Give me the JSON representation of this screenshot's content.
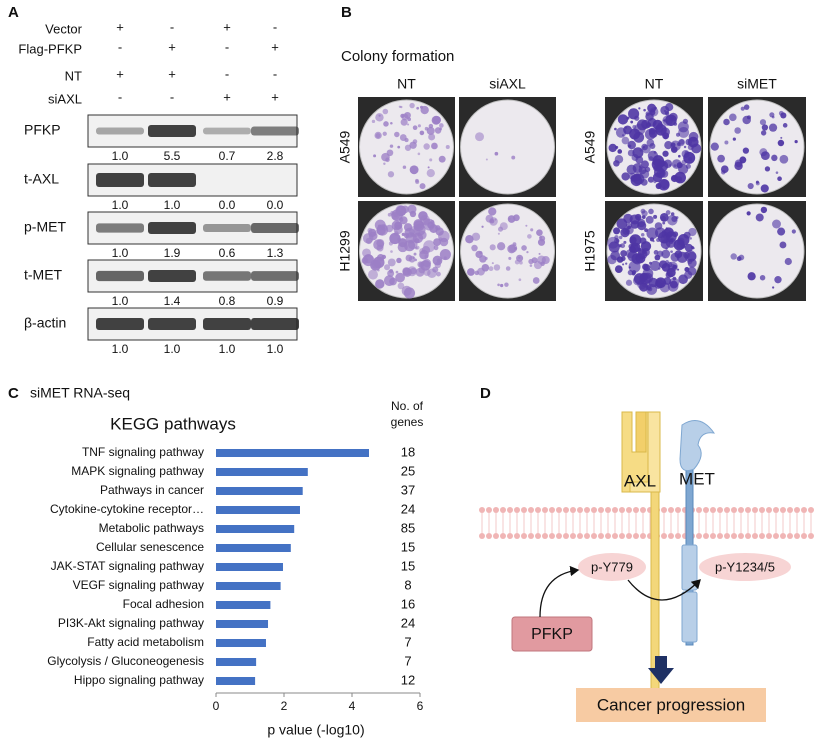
{
  "panel_labels": [
    "A",
    "B",
    "C",
    "D"
  ],
  "panel_a": {
    "treatments": [
      {
        "label": "Vector",
        "signs": [
          "+",
          "-",
          "+",
          "-"
        ]
      },
      {
        "label": "Flag-PFKP",
        "signs": [
          "-",
          "+",
          "-",
          "+"
        ]
      },
      {
        "label": "NT",
        "signs": [
          "+",
          "+",
          "-",
          "-"
        ]
      },
      {
        "label": "siAXL",
        "signs": [
          "-",
          "-",
          "+",
          "+"
        ]
      }
    ],
    "blots": [
      {
        "label": "PFKP",
        "quant": [
          "1.0",
          "5.5",
          "0.7",
          "2.8"
        ]
      },
      {
        "label": "t-AXL",
        "quant": [
          "1.0",
          "1.0",
          "0.0",
          "0.0"
        ]
      },
      {
        "label": "p-MET",
        "quant": [
          "1.0",
          "1.9",
          "0.6",
          "1.3"
        ]
      },
      {
        "label": "t-MET",
        "quant": [
          "1.0",
          "1.4",
          "0.8",
          "0.9"
        ]
      },
      {
        "label": "β-actin",
        "quant": [
          "1.0",
          "1.0",
          "1.0",
          "1.0"
        ]
      }
    ]
  },
  "panel_b": {
    "title": "Colony formation",
    "groups": [
      {
        "columns": [
          "NT",
          "siAXL"
        ],
        "rows": [
          "A549",
          "H1299"
        ]
      },
      {
        "columns": [
          "NT",
          "siMET"
        ],
        "rows": [
          "A549",
          "H1975"
        ]
      }
    ]
  },
  "chart_data": {
    "type": "bar",
    "orientation": "horizontal",
    "title": "siMET RNA-seq",
    "subtitle": "KEGG pathways",
    "count_header": [
      "No. of",
      "genes"
    ],
    "categories": [
      "TNF signaling pathway",
      "MAPK signaling pathway",
      "Pathways in cancer",
      "Cytokine-cytokine receptor…",
      "Metabolic pathways",
      "Cellular senescence",
      "JAK-STAT signaling pathway",
      "VEGF signaling pathway",
      "Focal adhesion",
      "PI3K-Akt signaling pathway",
      "Fatty acid metabolism",
      "Glycolysis / Gluconeogenesis",
      "Hippo signaling pathway"
    ],
    "values": [
      4.5,
      2.7,
      2.55,
      2.47,
      2.3,
      2.2,
      1.97,
      1.9,
      1.6,
      1.53,
      1.47,
      1.18,
      1.15
    ],
    "gene_counts": [
      "18",
      "25",
      "37",
      "24",
      "85",
      "15",
      "15",
      "8",
      "16",
      "24",
      "7",
      "7",
      "12"
    ],
    "color": "#4472c4",
    "xlabel": "p value (-log10)",
    "xlim": [
      0,
      6
    ],
    "xticks": [
      0,
      2,
      4,
      6
    ]
  },
  "panel_d": {
    "receptors": [
      "AXL",
      "MET"
    ],
    "sites": [
      "p-Y779",
      "p-Y1234/5"
    ],
    "effector": "PFKP",
    "outcome": "Cancer progression"
  }
}
